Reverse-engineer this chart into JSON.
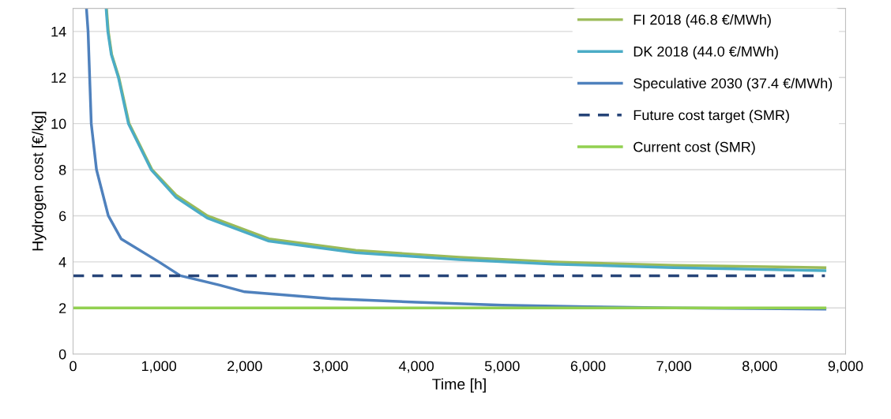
{
  "chart_data": {
    "type": "line",
    "xlabel": "Time [h]",
    "ylabel": "Hydrogen cost [€/kg]",
    "series": [
      {
        "name": "FI 2018 (46.8 €/MWh)",
        "color": "#9bbb59",
        "x": [
          390,
          411,
          450,
          534,
          653,
          920,
          1200,
          1564,
          2282,
          3294,
          4500,
          5595,
          7000,
          8760
        ],
        "values": [
          15,
          14,
          13,
          12,
          10,
          8,
          6.9,
          6,
          5,
          4.5,
          4.2,
          4,
          3.85,
          3.75
        ]
      },
      {
        "name": "DK 2018 (44.0 €/MWh)",
        "color": "#4bacc6",
        "x": [
          385,
          405,
          445,
          528,
          645,
          910,
          1200,
          1564,
          2282,
          3294,
          4500,
          5595,
          7000,
          8760
        ],
        "values": [
          15,
          14,
          13,
          12,
          10,
          8,
          6.8,
          5.9,
          4.9,
          4.4,
          4.1,
          3.9,
          3.75,
          3.62
        ]
      },
      {
        "name": "Speculative 2030 (37.4 €/MWh)",
        "color": "#4f81bd",
        "x": [
          156,
          175,
          212,
          273,
          411,
          560,
          1000,
          1250,
          1700,
          2000,
          3000,
          4000,
          5000,
          6000,
          7000,
          8760
        ],
        "values": [
          15,
          14,
          10,
          8,
          6,
          5,
          4,
          3.4,
          3,
          2.7,
          2.4,
          2.25,
          2.12,
          2.05,
          2.0,
          1.95
        ]
      },
      {
        "name": "Future cost target (SMR)",
        "color": "#264478",
        "line_style": "dashed",
        "x": [
          0,
          8760
        ],
        "values": [
          3.4,
          3.4
        ]
      },
      {
        "name": "Current cost (SMR)",
        "color": "#92d050",
        "x": [
          0,
          8760
        ],
        "values": [
          2,
          2
        ]
      }
    ],
    "xlim": [
      0,
      9000
    ],
    "xticks": [
      0,
      {
        "value": 1000,
        "label": "1,000"
      },
      {
        "value": 2000,
        "label": "2,000"
      },
      {
        "value": 3000,
        "label": "3,000"
      },
      {
        "value": 4000,
        "label": "4,000"
      },
      {
        "value": 5000,
        "label": "5,000"
      },
      {
        "value": 6000,
        "label": "6,000"
      },
      {
        "value": 7000,
        "label": "7,000"
      },
      {
        "value": 8000,
        "label": "8,000"
      },
      {
        "value": 9000,
        "label": "9,000"
      }
    ],
    "ylim": [
      0,
      15
    ],
    "yticks": [
      0,
      2,
      4,
      6,
      8,
      10,
      12,
      14
    ],
    "grid": "y",
    "legend": "top right",
    "line_style": "solid",
    "marker": "none"
  }
}
